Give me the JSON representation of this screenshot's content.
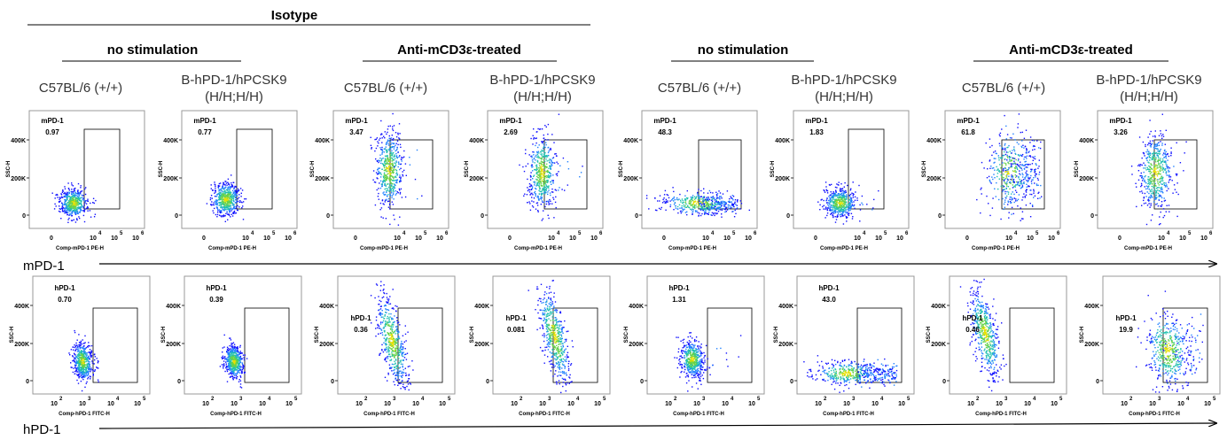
{
  "headers": {
    "isotype": "Isotype",
    "groups": [
      "no stimulation",
      "Anti-mCD3ε-treated",
      "no stimulation",
      "Anti-mCD3ε-treated"
    ],
    "strains": [
      "C57BL/6 (+/+)",
      "B-hPD-1/hPCSK9",
      "(H/H;H/H)"
    ]
  },
  "row_labels": {
    "top": "mPD-1",
    "bottom": "hPD-1"
  },
  "colors": {
    "density_low": "#1f1fff",
    "density_mid": "#1fc8c8",
    "density_high": "#5ad24a",
    "density_peak": "#e0e000"
  },
  "chart_data": [
    {
      "type": "scatter",
      "row": "mPD-1",
      "xlabel": "Comp-mPD-1 PE-H",
      "ylabel": "SSC-H",
      "x_scale": "biexponential",
      "x_ticks": [
        "0",
        "10",
        "4",
        "10",
        "5",
        "10",
        "6"
      ],
      "y_ticks": [
        "400K",
        "200K",
        "0"
      ],
      "ylim": [
        0,
        450000
      ],
      "gate_label": "mPD-1",
      "panels": [
        {
          "strain": "C57BL/6 (+/+)",
          "percent": "0.97"
        },
        {
          "strain": "B-hPD-1/hPCSK9 (H/H;H/H)",
          "percent": "0.77"
        },
        {
          "strain": "C57BL/6 (+/+)",
          "percent": "3.47"
        },
        {
          "strain": "B-hPD-1/hPCSK9 (H/H;H/H)",
          "percent": "2.69"
        },
        {
          "strain": "C57BL/6 (+/+)",
          "percent": "48.3"
        },
        {
          "strain": "B-hPD-1/hPCSK9 (H/H;H/H)",
          "percent": "1.83"
        },
        {
          "strain": "C57BL/6 (+/+)",
          "percent": "61.8"
        },
        {
          "strain": "B-hPD-1/hPCSK9 (H/H;H/H)",
          "percent": "3.26"
        }
      ]
    },
    {
      "type": "scatter",
      "row": "hPD-1",
      "xlabel": "Comp-hPD-1 FITC-H",
      "ylabel": "SSC-H",
      "x_scale": "log",
      "x_ticks": [
        "10",
        "2",
        "10",
        "3",
        "10",
        "4",
        "10",
        "5"
      ],
      "y_ticks": [
        "400K",
        "200K",
        "0"
      ],
      "ylim": [
        0,
        450000
      ],
      "gate_label": "hPD-1",
      "panels": [
        {
          "strain": "C57BL/6 (+/+)",
          "percent": "0.70"
        },
        {
          "strain": "B-hPD-1/hPCSK9 (H/H;H/H)",
          "percent": "0.39"
        },
        {
          "strain": "C57BL/6 (+/+)",
          "percent": "0.36"
        },
        {
          "strain": "B-hPD-1/hPCSK9 (H/H;H/H)",
          "percent": "0.081"
        },
        {
          "strain": "C57BL/6 (+/+)",
          "percent": "1.31"
        },
        {
          "strain": "B-hPD-1/hPCSK9 (H/H;H/H)",
          "percent": "43.0"
        },
        {
          "strain": "C57BL/6 (+/+)",
          "percent": "0.46"
        },
        {
          "strain": "B-hPD-1/hPCSK9 (H/H;H/H)",
          "percent": "19.9"
        }
      ]
    }
  ]
}
